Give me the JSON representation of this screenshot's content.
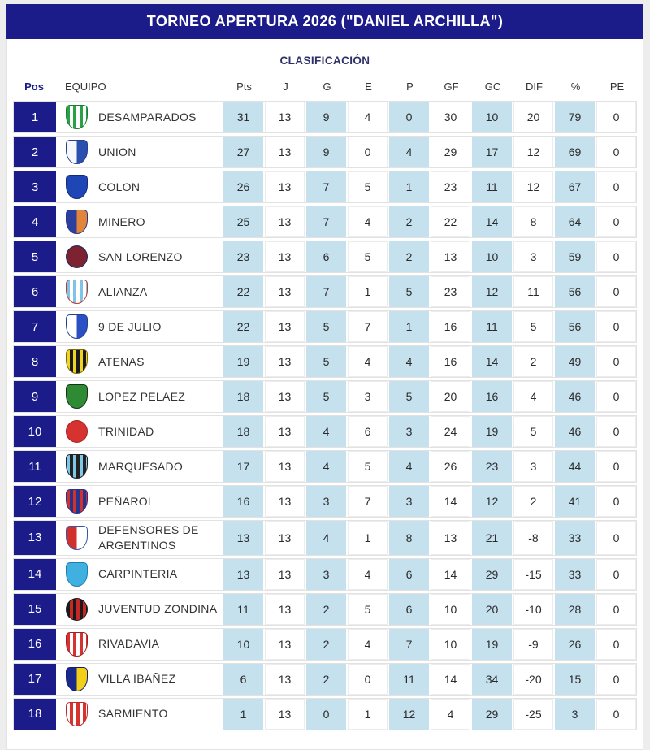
{
  "header": {
    "title": "TORNEO APERTURA 2026 (\"DANIEL ARCHILLA\")"
  },
  "table": {
    "subtitle": "CLASIFICACIÓN",
    "columns": [
      "Pos",
      "EQUIPO",
      "Pts",
      "J",
      "G",
      "E",
      "P",
      "GF",
      "GC",
      "DIF",
      "%",
      "PE"
    ],
    "highlight_indices": [
      0,
      2,
      4,
      6,
      8
    ],
    "colors": {
      "navy": "#1b1b8a",
      "highlight_cell": "#c5e1ee",
      "row_border": "#e2e2e2",
      "page_background": "#ededed"
    },
    "rows": [
      {
        "pos": 1,
        "team": "DESAMPARADOS",
        "badge": {
          "shape": "shield",
          "style": "stripes",
          "c1": "#27a345",
          "c2": "#ffffff",
          "border": "#1c7a33"
        },
        "stats": [
          31,
          13,
          9,
          4,
          0,
          30,
          10,
          20,
          79,
          0
        ]
      },
      {
        "pos": 2,
        "team": "UNION",
        "badge": {
          "shape": "shield",
          "style": "split",
          "c1": "#f5f7fa",
          "c2": "#2a4fae",
          "border": "#24418f"
        },
        "stats": [
          27,
          13,
          9,
          0,
          4,
          29,
          17,
          12,
          69,
          0
        ]
      },
      {
        "pos": 3,
        "team": "COLON",
        "badge": {
          "shape": "shield",
          "style": "solid",
          "c1": "#1e46b4",
          "c2": "#1e46b4",
          "border": "#122c7a"
        },
        "stats": [
          26,
          13,
          7,
          5,
          1,
          23,
          11,
          12,
          67,
          0
        ]
      },
      {
        "pos": 4,
        "team": "MINERO",
        "badge": {
          "shape": "shield",
          "style": "split",
          "c1": "#2c3f9e",
          "c2": "#e0853a",
          "border": "#28358a"
        },
        "stats": [
          25,
          13,
          7,
          4,
          2,
          22,
          14,
          8,
          64,
          0
        ]
      },
      {
        "pos": 5,
        "team": "SAN LORENZO",
        "badge": {
          "shape": "circle",
          "style": "solid",
          "c1": "#7c2230",
          "c2": "#7c2230",
          "border": "#1a2a5e"
        },
        "stats": [
          23,
          13,
          6,
          5,
          2,
          13,
          10,
          3,
          59,
          0
        ]
      },
      {
        "pos": 6,
        "team": "ALIANZA",
        "badge": {
          "shape": "shield",
          "style": "stripes",
          "c1": "#7fc4e8",
          "c2": "#ffffff",
          "border": "#c0392b"
        },
        "stats": [
          22,
          13,
          7,
          1,
          5,
          23,
          12,
          11,
          56,
          0
        ]
      },
      {
        "pos": 7,
        "team": "9 DE JULIO",
        "badge": {
          "shape": "shield",
          "style": "split",
          "c1": "#ffffff",
          "c2": "#2a50c4",
          "border": "#24418f"
        },
        "stats": [
          22,
          13,
          5,
          7,
          1,
          16,
          11,
          5,
          56,
          0
        ]
      },
      {
        "pos": 8,
        "team": "ATENAS",
        "badge": {
          "shape": "shield",
          "style": "stripes",
          "c1": "#f0d41e",
          "c2": "#1a1a1a",
          "border": "#7a6a10"
        },
        "stats": [
          19,
          13,
          5,
          4,
          4,
          16,
          14,
          2,
          49,
          0
        ]
      },
      {
        "pos": 9,
        "team": "LOPEZ PELAEZ",
        "badge": {
          "shape": "shield",
          "style": "solid",
          "c1": "#2e8b34",
          "c2": "#2e8b34",
          "border": "#143317"
        },
        "stats": [
          18,
          13,
          5,
          3,
          5,
          20,
          16,
          4,
          46,
          0
        ]
      },
      {
        "pos": 10,
        "team": "TRINIDAD",
        "badge": {
          "shape": "circle",
          "style": "solid",
          "c1": "#d63230",
          "c2": "#d63230",
          "border": "#a02020"
        },
        "stats": [
          18,
          13,
          4,
          6,
          3,
          24,
          19,
          5,
          46,
          0
        ]
      },
      {
        "pos": 11,
        "team": "MARQUESADO",
        "badge": {
          "shape": "shield",
          "style": "stripes",
          "c1": "#7ec8e8",
          "c2": "#222222",
          "border": "#222222"
        },
        "stats": [
          17,
          13,
          4,
          5,
          4,
          26,
          23,
          3,
          44,
          0
        ]
      },
      {
        "pos": 12,
        "team": "PEÑAROL",
        "badge": {
          "shape": "shield",
          "style": "stripes",
          "c1": "#d0312d",
          "c2": "#27348b",
          "border": "#27348b"
        },
        "stats": [
          16,
          13,
          3,
          7,
          3,
          14,
          12,
          2,
          41,
          0
        ]
      },
      {
        "pos": 13,
        "team": "DEFENSORES DE ARGENTINOS",
        "badge": {
          "shape": "shield",
          "style": "split",
          "c1": "#d0312d",
          "c2": "#ffffff",
          "border": "#3a55a4"
        },
        "stats": [
          13,
          13,
          4,
          1,
          8,
          13,
          21,
          -8,
          33,
          0
        ]
      },
      {
        "pos": 14,
        "team": "CARPINTERIA",
        "badge": {
          "shape": "shield",
          "style": "solid",
          "c1": "#3fb0e0",
          "c2": "#3fb0e0",
          "border": "#1d7fb0"
        },
        "stats": [
          13,
          13,
          3,
          4,
          6,
          14,
          29,
          -15,
          33,
          0
        ]
      },
      {
        "pos": 15,
        "team": "JUVENTUD ZONDINA",
        "badge": {
          "shape": "circle",
          "style": "stripes",
          "c1": "#1a1a1a",
          "c2": "#c62828",
          "border": "#1a1a1a"
        },
        "stats": [
          11,
          13,
          2,
          5,
          6,
          10,
          20,
          -10,
          28,
          0
        ]
      },
      {
        "pos": 16,
        "team": "RIVADAVIA",
        "badge": {
          "shape": "shield",
          "style": "stripes",
          "c1": "#d63230",
          "c2": "#ffffff",
          "border": "#a02020"
        },
        "stats": [
          10,
          13,
          2,
          4,
          7,
          10,
          19,
          -9,
          26,
          0
        ]
      },
      {
        "pos": 17,
        "team": "VILLA IBAÑEZ",
        "badge": {
          "shape": "shield",
          "style": "split",
          "c1": "#1b2a8a",
          "c2": "#f2d018",
          "border": "#14206b"
        },
        "stats": [
          6,
          13,
          2,
          0,
          11,
          14,
          34,
          -20,
          15,
          0
        ]
      },
      {
        "pos": 18,
        "team": "SARMIENTO",
        "badge": {
          "shape": "shield",
          "style": "stripes",
          "c1": "#ffffff",
          "c2": "#d63230",
          "border": "#c62828"
        },
        "stats": [
          1,
          13,
          0,
          1,
          12,
          4,
          29,
          -25,
          3,
          0
        ]
      }
    ]
  }
}
